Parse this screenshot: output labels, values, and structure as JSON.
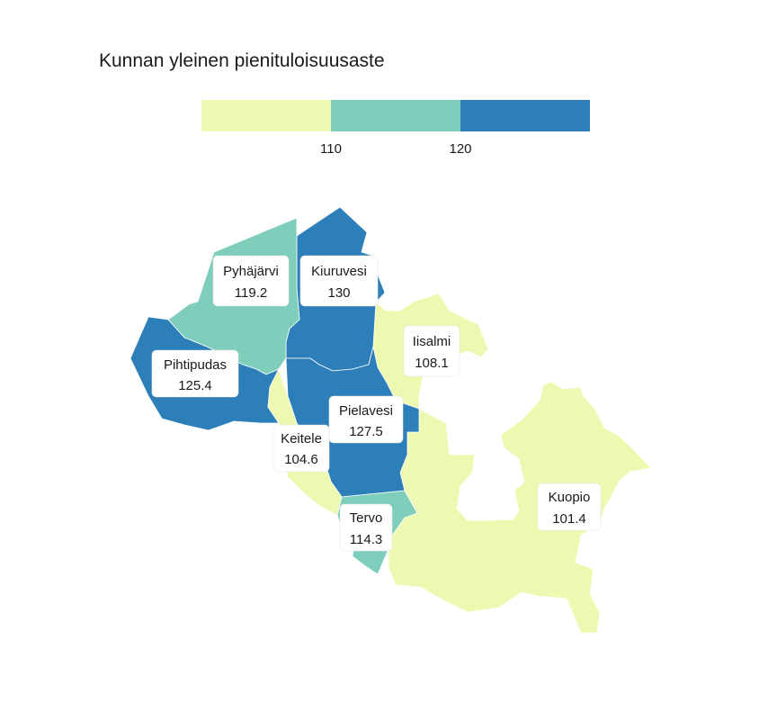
{
  "title": "Kunnan yleinen pienituloisuusaste",
  "colors": {
    "low": "#edf8b1",
    "mid": "#7fcdbb",
    "high": "#2c7fb8",
    "border": "#ffffff"
  },
  "legend": {
    "breaks": [
      110,
      120
    ],
    "bins": [
      {
        "color_key": "low"
      },
      {
        "color_key": "mid"
      },
      {
        "color_key": "high"
      }
    ],
    "ticks": [
      "110",
      "120"
    ]
  },
  "chart_data": {
    "type": "choropleth",
    "title": "Kunnan yleinen pienituloisuusaste",
    "breaks": [
      110,
      120
    ],
    "regions": [
      {
        "name": "Pyhäjärvi",
        "value": 119.2,
        "value_label": "119.2"
      },
      {
        "name": "Kiuruvesi",
        "value": 130,
        "value_label": "130"
      },
      {
        "name": "Iisalmi",
        "value": 108.1,
        "value_label": "108.1"
      },
      {
        "name": "Pihtipudas",
        "value": 125.4,
        "value_label": "125.4"
      },
      {
        "name": "Pielavesi",
        "value": 127.5,
        "value_label": "127.5"
      },
      {
        "name": "Keitele",
        "value": 104.6,
        "value_label": "104.6"
      },
      {
        "name": "Tervo",
        "value": 114.3,
        "value_label": "114.3"
      },
      {
        "name": "Kuopio",
        "value": 101.4,
        "value_label": "101.4"
      }
    ]
  }
}
